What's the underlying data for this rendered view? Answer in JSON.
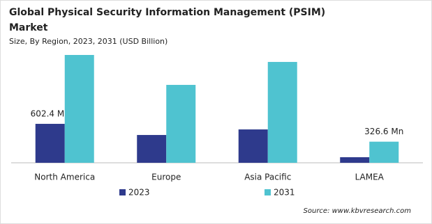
{
  "chart_data": {
    "type": "bar",
    "title": "Global Physical Security Information Management (PSIM) Market",
    "subtitle": "Size, By Region, 2023, 2031 (USD Billion)",
    "categories": [
      "North America",
      "Europe",
      "Asia Pacific",
      "LAMEA"
    ],
    "series": [
      {
        "name": "2023",
        "color": "#2e3a8c",
        "values": [
          602.4,
          430,
          516,
          86
        ],
        "value_labels": [
          "602.4 Mn",
          null,
          null,
          null
        ]
      },
      {
        "name": "2031",
        "color": "#4fc3d0",
        "values": [
          1668,
          1205,
          1560,
          326.6
        ],
        "value_labels": [
          null,
          null,
          null,
          "326.6 Mn"
        ]
      }
    ],
    "source": "Source: www.kbvresearch.com"
  }
}
